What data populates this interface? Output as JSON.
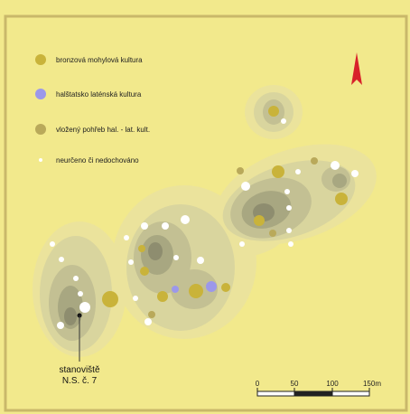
{
  "legend": {
    "items": [
      {
        "label": "bronzová mohylová kultura",
        "color": "#c9b33a",
        "symbol": "large-dot"
      },
      {
        "label": "halštatsko laténská kultura",
        "color": "#9c98ea",
        "symbol": "large-dot"
      },
      {
        "label": "vložený pohřeb hal. - lat. kult.",
        "color": "#b9a95a",
        "symbol": "large-dot"
      },
      {
        "label": "neurčeno či nedochováno",
        "color": "#ffffff",
        "symbol": "small-dot"
      }
    ]
  },
  "north_arrow": {
    "icon": "north-arrow-icon",
    "color": "#d8212a"
  },
  "site_label": {
    "line1": "stanoviště",
    "line2": "N.S. č. 7"
  },
  "scale_bar": {
    "ticks": [
      "0",
      "50",
      "100",
      "150m"
    ]
  },
  "colors": {
    "background": "#f2e98c",
    "frame": "#c9b86a",
    "contour_1": "#ebe39c",
    "contour_2": "#d9d59e",
    "contour_3": "#c3c093",
    "contour_4": "#a8a781",
    "contour_5": "#8e8d6f"
  }
}
